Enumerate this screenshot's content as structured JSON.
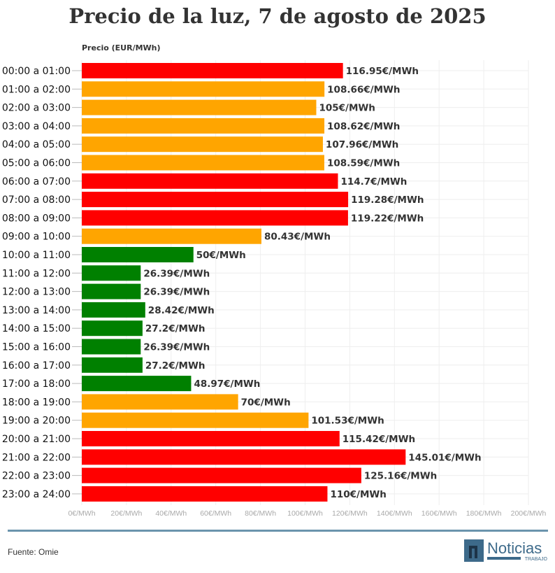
{
  "chart_data": {
    "type": "bar",
    "orientation": "horizontal",
    "title": "Precio de la luz, 7 de agosto de 2025",
    "xlabel": "Precio (EUR/MWh)",
    "xlim": [
      0,
      200
    ],
    "xticks": [
      "0€/MWh",
      "20€/MWh",
      "40€/MWh",
      "60€/MWh",
      "80€/MWh",
      "100€/MWh",
      "120€/MWh",
      "140€/MWh",
      "160€/MWh",
      "180€/MWh",
      "200€/MWh"
    ],
    "grid": true,
    "categories": [
      "00:00 a 01:00",
      "01:00 a 02:00",
      "02:00 a 03:00",
      "03:00 a 04:00",
      "04:00 a 05:00",
      "05:00 a 06:00",
      "06:00 a 07:00",
      "07:00 a 08:00",
      "08:00 a 09:00",
      "09:00 a 10:00",
      "10:00 a 11:00",
      "11:00 a 12:00",
      "12:00 a 13:00",
      "13:00 a 14:00",
      "14:00 a 15:00",
      "15:00 a 16:00",
      "16:00 a 17:00",
      "17:00 a 18:00",
      "18:00 a 19:00",
      "19:00 a 20:00",
      "20:00 a 21:00",
      "21:00 a 22:00",
      "22:00 a 23:00",
      "23:00 a 24:00"
    ],
    "values": [
      116.95,
      108.66,
      105,
      108.62,
      107.96,
      108.59,
      114.7,
      119.28,
      119.22,
      80.43,
      50,
      26.39,
      26.39,
      28.42,
      27.2,
      26.39,
      27.2,
      48.97,
      70,
      101.53,
      115.42,
      145.01,
      125.16,
      110
    ],
    "labels": [
      "116.95€/MWh",
      "108.66€/MWh",
      "105€/MWh",
      "108.62€/MWh",
      "107.96€/MWh",
      "108.59€/MWh",
      "114.7€/MWh",
      "119.28€/MWh",
      "119.22€/MWh",
      "80.43€/MWh",
      "50€/MWh",
      "26.39€/MWh",
      "26.39€/MWh",
      "28.42€/MWh",
      "27.2€/MWh",
      "26.39€/MWh",
      "27.2€/MWh",
      "48.97€/MWh",
      "70€/MWh",
      "101.53€/MWh",
      "115.42€/MWh",
      "145.01€/MWh",
      "125.16€/MWh",
      "110€/MWh"
    ],
    "levels": [
      "high",
      "mid",
      "mid",
      "mid",
      "mid",
      "mid",
      "high",
      "high",
      "high",
      "mid",
      "low",
      "low",
      "low",
      "low",
      "low",
      "low",
      "low",
      "low",
      "mid",
      "mid",
      "high",
      "high",
      "high",
      "high"
    ],
    "colors": {
      "high": "#ff0000",
      "mid": "#ffa500",
      "low": "#008000"
    }
  },
  "footer": {
    "source": "Fuente: Omie",
    "logo_text": "Noticias",
    "logo_sub": "TRABAJO"
  }
}
